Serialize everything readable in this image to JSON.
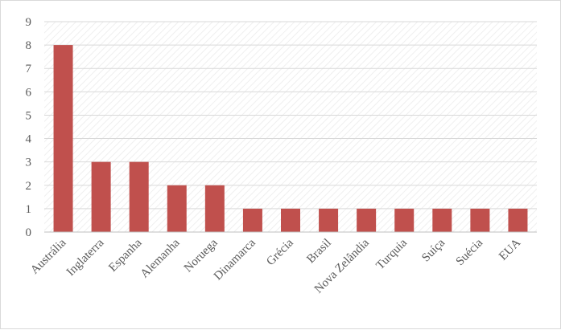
{
  "chart_data": {
    "type": "bar",
    "title": "",
    "xlabel": "",
    "ylabel": "",
    "categories": [
      "Austrália",
      "Inglaterra",
      "Espanha",
      "Alemanha",
      "Noruega",
      "Dinamarca",
      "Grécia",
      "Brasil",
      "Nova Zelândia",
      "Turquia",
      "Suíça",
      "Suécia",
      "EUA"
    ],
    "values": [
      8,
      3,
      3,
      2,
      2,
      1,
      1,
      1,
      1,
      1,
      1,
      1,
      1
    ],
    "ylim": [
      0,
      9
    ],
    "yticks": [
      "0",
      "1",
      "2",
      "3",
      "4",
      "5",
      "6",
      "7",
      "8",
      "9"
    ],
    "grid": true,
    "legend": "none",
    "colors": {
      "bar": "#c0504d",
      "grid": "#d9d9d9",
      "axis": "#bfbfbf",
      "text": "#595959"
    }
  }
}
